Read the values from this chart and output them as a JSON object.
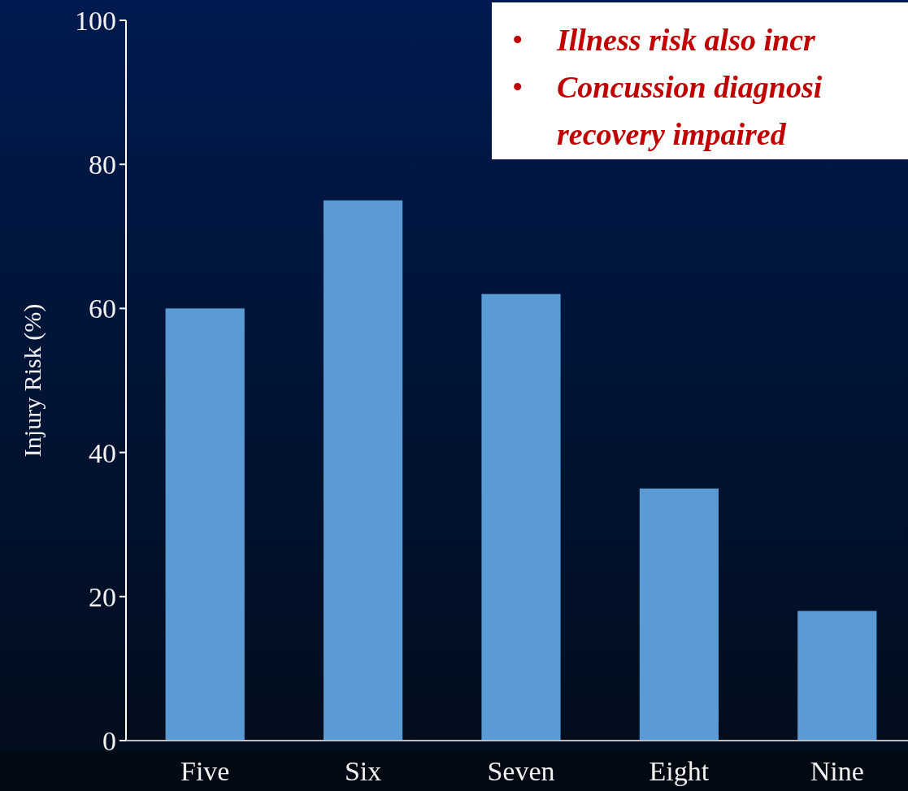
{
  "chart_data": {
    "type": "bar",
    "ylabel": "Injury Risk (%)",
    "categories": [
      "Five",
      "Six",
      "Seven",
      "Eight",
      "Nine"
    ],
    "values": [
      60,
      75,
      62,
      35,
      18
    ],
    "color": "#5b9bd5",
    "ylim": [
      0,
      100
    ],
    "yticks": [
      0,
      20,
      40,
      60,
      80,
      100
    ],
    "grid": false,
    "annotations": [
      "• Illness risk also incr",
      "• Concussion diagnosi\nrecovery impaired"
    ]
  }
}
